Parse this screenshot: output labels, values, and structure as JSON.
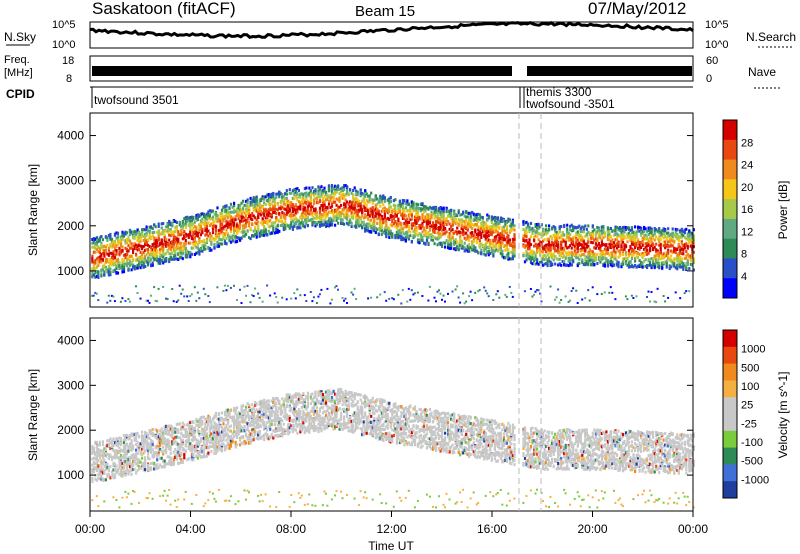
{
  "header": {
    "station": "Saskatoon (fitACF)",
    "beam": "Beam 15",
    "date": "07/May/2012"
  },
  "top_panels": {
    "nsky_label": "N.Sky",
    "nsky_ticks": [
      "10^5",
      "10^0"
    ],
    "nsearch_label": "N.Search",
    "nsearch_ticks": [
      "10^5",
      "10^0"
    ],
    "freq_label": "Freq.",
    "freq_unit": "[MHz]",
    "freq_ticks": [
      "18",
      "8"
    ],
    "nave_label": "Nave",
    "nave_ticks": [
      "60",
      "0"
    ],
    "cpid_label": "CPID",
    "cpid_entries": [
      {
        "text": "twofsound 3501",
        "start_hour": 0
      },
      {
        "text": "themis 3300",
        "start_hour": 17.0
      },
      {
        "text": "twofsound -3501",
        "start_hour": 17.2
      }
    ]
  },
  "colorbars": {
    "power": {
      "label": "Power [dB]",
      "ticks": [
        "28",
        "24",
        "20",
        "16",
        "12",
        "8",
        "4"
      ],
      "colors": [
        "#0000ff",
        "#2a4fc8",
        "#2e8b57",
        "#5faa80",
        "#a6c94a",
        "#f5c518",
        "#f08a1c",
        "#e84810",
        "#d40000"
      ]
    },
    "velocity": {
      "label": "Velocity [m s^-1]",
      "ticks": [
        "1000",
        "500",
        "100",
        "25",
        "-25",
        "-100",
        "-500",
        "-1000"
      ],
      "colors": [
        "#1e3f9e",
        "#3f6fd8",
        "#2e8b57",
        "#7acc3a",
        "#c8c8c8",
        "#c8c8c8",
        "#f5b042",
        "#f08a1c",
        "#e84810",
        "#d40000"
      ]
    }
  },
  "x_axis": {
    "label": "Time UT",
    "ticks": [
      "00:00",
      "04:00",
      "08:00",
      "12:00",
      "16:00",
      "20:00",
      "00:00"
    ]
  },
  "chart_data": [
    {
      "type": "heatmap",
      "title": "Power",
      "xlabel": "Time UT",
      "ylabel": "Slant Range [km]",
      "xlim": [
        0,
        24
      ],
      "ylim": [
        200,
        4500
      ],
      "yticks": [
        1000,
        2000,
        3000,
        4000
      ],
      "value_label": "Power [dB]",
      "value_range": [
        0,
        30
      ],
      "echo_band_center_km": {
        "hours": [
          0,
          2,
          4,
          6,
          8,
          10,
          12,
          14,
          16,
          17,
          18,
          20,
          22,
          24
        ],
        "range_km": [
          1300,
          1550,
          1800,
          2150,
          2400,
          2500,
          2200,
          2000,
          1800,
          1700,
          1600,
          1600,
          1550,
          1500
        ]
      },
      "data_gap_hours": [
        16.9,
        17.2
      ]
    },
    {
      "type": "heatmap",
      "title": "Velocity",
      "xlabel": "Time UT",
      "ylabel": "Slant Range [km]",
      "xlim": [
        0,
        24
      ],
      "ylim": [
        200,
        4500
      ],
      "yticks": [
        1000,
        2000,
        3000,
        4000
      ],
      "value_label": "Velocity [m s^-1]",
      "value_range": [
        -1000,
        1000
      ]
    }
  ]
}
